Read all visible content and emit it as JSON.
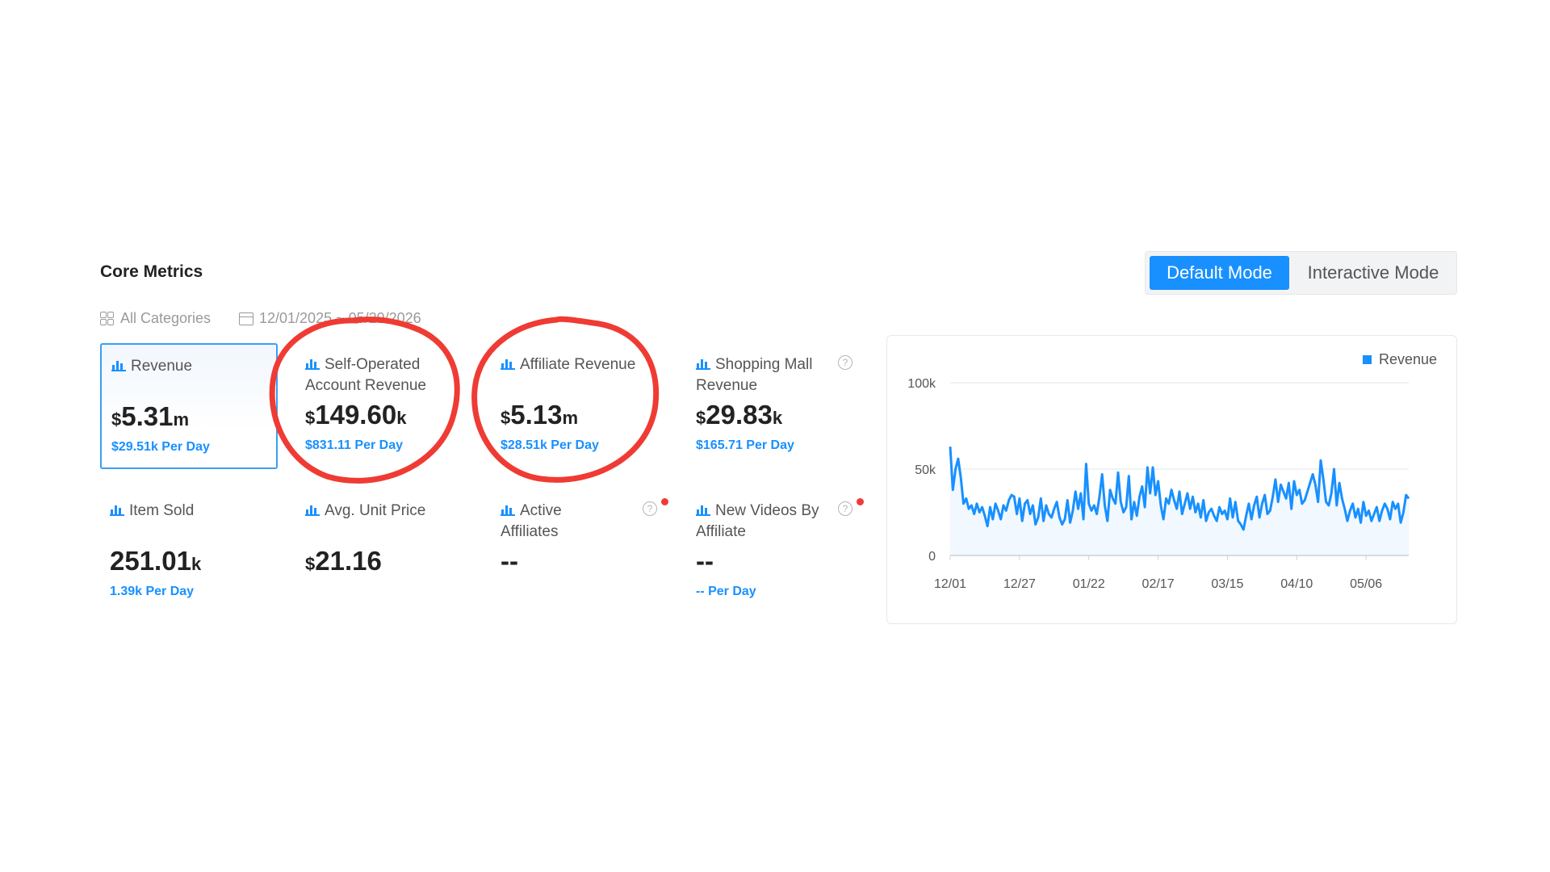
{
  "header": {
    "title": "Core Metrics"
  },
  "modes": {
    "default": "Default Mode",
    "interactive": "Interactive Mode",
    "selected": "Default Mode"
  },
  "filters": {
    "category": "All Categories",
    "date_range": "12/01/2025 ~ 05/29/2026"
  },
  "metrics": [
    {
      "label": "Revenue",
      "currency": "$",
      "value": "5.31",
      "unit": "m",
      "per_day": "$29.51k Per Day",
      "selected": true
    },
    {
      "label": "Self-Operated Account Revenue",
      "currency": "$",
      "value": "149.60",
      "unit": "k",
      "per_day": "$831.11 Per Day"
    },
    {
      "label": "Affiliate Revenue",
      "currency": "$",
      "value": "5.13",
      "unit": "m",
      "per_day": "$28.51k Per Day"
    },
    {
      "label": "Shopping Mall Revenue",
      "currency": "$",
      "value": "29.83",
      "unit": "k",
      "per_day": "$165.71 Per Day",
      "help": "?"
    },
    {
      "label": "Item Sold",
      "currency": "",
      "value": "251.01",
      "unit": "k",
      "per_day": "1.39k Per Day"
    },
    {
      "label": "Avg. Unit Price",
      "currency": "$",
      "value": "21.16",
      "unit": "",
      "per_day": ""
    },
    {
      "label": "Active Affiliates",
      "currency": "",
      "value": "--",
      "unit": "",
      "per_day": "",
      "help": "?"
    },
    {
      "label": "New Videos By Affiliate",
      "currency": "",
      "value": "--",
      "unit": "",
      "per_day": "-- Per Day",
      "help": "?"
    }
  ],
  "chart_data": {
    "type": "area",
    "title": "",
    "legend": {
      "entries": [
        "Revenue"
      ],
      "position": "top-right"
    },
    "series": [
      {
        "name": "Revenue",
        "color": "#1890ff",
        "values": [
          63000,
          38000,
          50000,
          56000,
          45000,
          30000,
          33000,
          27000,
          29000,
          24000,
          30000,
          25000,
          28000,
          23000,
          17000,
          28000,
          21000,
          30000,
          26000,
          21000,
          29000,
          26000,
          32000,
          35000,
          34000,
          24000,
          33000,
          20000,
          30000,
          32000,
          24000,
          29000,
          18000,
          22000,
          33000,
          20000,
          29000,
          24000,
          22000,
          27000,
          31000,
          22000,
          18000,
          21000,
          32000,
          19000,
          26000,
          37000,
          27000,
          36000,
          21000,
          53000,
          30000,
          26000,
          29000,
          24000,
          34000,
          47000,
          29000,
          20000,
          38000,
          33000,
          30000,
          48000,
          31000,
          25000,
          28000,
          46000,
          21000,
          31000,
          23000,
          34000,
          40000,
          28000,
          51000,
          36000,
          51000,
          35000,
          43000,
          29000,
          21000,
          33000,
          30000,
          38000,
          32000,
          27000,
          37000,
          24000,
          30000,
          36000,
          27000,
          34000,
          25000,
          30000,
          22000,
          32000,
          20000,
          25000,
          27000,
          23000,
          20000,
          28000,
          24000,
          26000,
          21000,
          33000,
          22000,
          31000,
          20000,
          18000,
          15000,
          23000,
          30000,
          21000,
          29000,
          34000,
          22000,
          30000,
          35000,
          24000,
          26000,
          34000,
          44000,
          31000,
          41000,
          37000,
          33000,
          42000,
          27000,
          43000,
          35000,
          38000,
          30000,
          32000,
          37000,
          42000,
          47000,
          41000,
          31000,
          55000,
          44000,
          31000,
          29000,
          36000,
          50000,
          29000,
          42000,
          33000,
          27000,
          20000,
          26000,
          30000,
          22000,
          27000,
          19000,
          31000,
          23000,
          26000,
          20000,
          24000,
          28000,
          20000,
          26000,
          30000,
          27000,
          21000,
          31000,
          27000,
          30000,
          19000,
          25000,
          35000,
          33000
        ]
      }
    ],
    "x_ticks": [
      "12/01",
      "12/27",
      "01/22",
      "02/17",
      "03/15",
      "04/10",
      "05/06"
    ],
    "y_ticks": [
      "0",
      "50k",
      "100k"
    ],
    "ylim": [
      0,
      100000
    ],
    "grid": true
  }
}
